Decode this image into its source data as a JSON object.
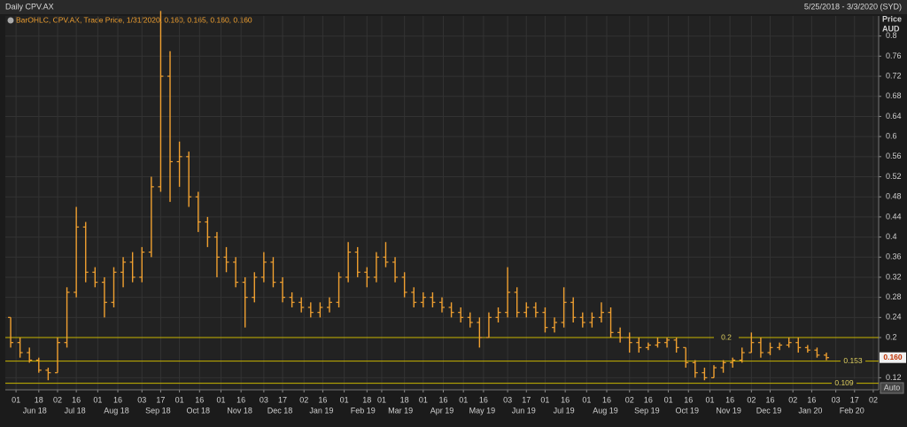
{
  "chart_data": {
    "type": "ohlc",
    "title": "Daily CPV.AX",
    "date_range": "5/25/2018 - 3/3/2020 (SYD)",
    "legend": "BarOHLC, CPV.AX, Trade Price, 1/31/2020, 0.160, 0.165, 0.160, 0.160",
    "y_axis_label": [
      "Price",
      "AUD"
    ],
    "button": "Auto",
    "color": "#f0a030",
    "line_color": "#c8b400",
    "grid": true,
    "xlim": [
      "2018-05-24",
      "2020-03-06"
    ],
    "ylim": [
      0.096,
      0.84
    ],
    "yticks": [
      0.12,
      0.2,
      0.24,
      0.28,
      0.32,
      0.36,
      0.4,
      0.44,
      0.48,
      0.52,
      0.56,
      0.6,
      0.64,
      0.68,
      0.72,
      0.76,
      0.8
    ],
    "hlines": [
      0.2,
      0.153,
      0.109
    ],
    "last_price": {
      "value": 0.16,
      "label": "0.160"
    },
    "xticks": [
      {
        "value": "2018-06-01",
        "label": "01"
      },
      {
        "value": "2018-06-18",
        "label": "18"
      },
      {
        "value": "2018-07-02",
        "label": "02"
      },
      {
        "value": "2018-07-16",
        "label": "16"
      },
      {
        "value": "2018-08-01",
        "label": "01"
      },
      {
        "value": "2018-08-16",
        "label": "16"
      },
      {
        "value": "2018-09-03",
        "label": "03"
      },
      {
        "value": "2018-09-17",
        "label": "17"
      },
      {
        "value": "2018-10-01",
        "label": "01"
      },
      {
        "value": "2018-10-16",
        "label": "16"
      },
      {
        "value": "2018-11-01",
        "label": "01"
      },
      {
        "value": "2018-11-16",
        "label": "16"
      },
      {
        "value": "2018-12-03",
        "label": "03"
      },
      {
        "value": "2018-12-17",
        "label": "17"
      },
      {
        "value": "2019-01-02",
        "label": "02"
      },
      {
        "value": "2019-01-16",
        "label": "16"
      },
      {
        "value": "2019-02-01",
        "label": "01"
      },
      {
        "value": "2019-02-18",
        "label": "18"
      },
      {
        "value": "2019-03-01",
        "label": "01"
      },
      {
        "value": "2019-03-18",
        "label": "18"
      },
      {
        "value": "2019-04-01",
        "label": "01"
      },
      {
        "value": "2019-04-16",
        "label": "16"
      },
      {
        "value": "2019-05-01",
        "label": "01"
      },
      {
        "value": "2019-05-16",
        "label": "16"
      },
      {
        "value": "2019-06-03",
        "label": "03"
      },
      {
        "value": "2019-06-17",
        "label": "17"
      },
      {
        "value": "2019-07-01",
        "label": "01"
      },
      {
        "value": "2019-07-16",
        "label": "16"
      },
      {
        "value": "2019-08-01",
        "label": "01"
      },
      {
        "value": "2019-08-16",
        "label": "16"
      },
      {
        "value": "2019-09-02",
        "label": "02"
      },
      {
        "value": "2019-09-16",
        "label": "16"
      },
      {
        "value": "2019-10-01",
        "label": "01"
      },
      {
        "value": "2019-10-16",
        "label": "16"
      },
      {
        "value": "2019-11-01",
        "label": "01"
      },
      {
        "value": "2019-11-16",
        "label": "16"
      },
      {
        "value": "2019-12-02",
        "label": "02"
      },
      {
        "value": "2019-12-16",
        "label": "16"
      },
      {
        "value": "2020-01-02",
        "label": "02"
      },
      {
        "value": "2020-01-16",
        "label": "16"
      },
      {
        "value": "2020-02-03",
        "label": "03"
      },
      {
        "value": "2020-02-17",
        "label": "17"
      },
      {
        "value": "2020-03-02",
        "label": "02"
      }
    ],
    "month_labels": [
      {
        "value": "2018-06-15",
        "label": "Jun 18"
      },
      {
        "value": "2018-07-15",
        "label": "Jul 18"
      },
      {
        "value": "2018-08-15",
        "label": "Aug 18"
      },
      {
        "value": "2018-09-15",
        "label": "Sep 18"
      },
      {
        "value": "2018-10-15",
        "label": "Oct 18"
      },
      {
        "value": "2018-11-15",
        "label": "Nov 18"
      },
      {
        "value": "2018-12-15",
        "label": "Dec 18"
      },
      {
        "value": "2019-01-15",
        "label": "Jan 19"
      },
      {
        "value": "2019-02-15",
        "label": "Feb 19"
      },
      {
        "value": "2019-03-15",
        "label": "Mar 19"
      },
      {
        "value": "2019-04-15",
        "label": "Apr 19"
      },
      {
        "value": "2019-05-15",
        "label": "May 19"
      },
      {
        "value": "2019-06-15",
        "label": "Jun 19"
      },
      {
        "value": "2019-07-15",
        "label": "Jul 19"
      },
      {
        "value": "2019-08-15",
        "label": "Aug 19"
      },
      {
        "value": "2019-09-15",
        "label": "Sep 19"
      },
      {
        "value": "2019-10-15",
        "label": "Oct 19"
      },
      {
        "value": "2019-11-15",
        "label": "Nov 19"
      },
      {
        "value": "2019-12-15",
        "label": "Dec 19"
      },
      {
        "value": "2020-01-15",
        "label": "Jan 20"
      },
      {
        "value": "2020-02-15",
        "label": "Feb 20"
      }
    ],
    "x": [
      "2018-05-28",
      "2018-06-04",
      "2018-06-11",
      "2018-06-18",
      "2018-06-25",
      "2018-07-02",
      "2018-07-09",
      "2018-07-16",
      "2018-07-23",
      "2018-07-30",
      "2018-08-06",
      "2018-08-13",
      "2018-08-20",
      "2018-08-27",
      "2018-09-03",
      "2018-09-10",
      "2018-09-17",
      "2018-09-24",
      "2018-10-01",
      "2018-10-08",
      "2018-10-15",
      "2018-10-22",
      "2018-10-29",
      "2018-11-05",
      "2018-11-12",
      "2018-11-19",
      "2018-11-26",
      "2018-12-03",
      "2018-12-10",
      "2018-12-17",
      "2018-12-24",
      "2018-12-31",
      "2019-01-07",
      "2019-01-14",
      "2019-01-21",
      "2019-01-28",
      "2019-02-04",
      "2019-02-11",
      "2019-02-18",
      "2019-02-25",
      "2019-03-04",
      "2019-03-11",
      "2019-03-18",
      "2019-03-25",
      "2019-04-01",
      "2019-04-08",
      "2019-04-15",
      "2019-04-22",
      "2019-04-29",
      "2019-05-06",
      "2019-05-13",
      "2019-05-20",
      "2019-05-27",
      "2019-06-03",
      "2019-06-10",
      "2019-06-17",
      "2019-06-24",
      "2019-07-01",
      "2019-07-08",
      "2019-07-15",
      "2019-07-22",
      "2019-07-29",
      "2019-08-05",
      "2019-08-12",
      "2019-08-19",
      "2019-08-26",
      "2019-09-02",
      "2019-09-09",
      "2019-09-16",
      "2019-09-23",
      "2019-09-30",
      "2019-10-07",
      "2019-10-14",
      "2019-10-21",
      "2019-10-28",
      "2019-11-04",
      "2019-11-11",
      "2019-11-18",
      "2019-11-25",
      "2019-12-02",
      "2019-12-09",
      "2019-12-16",
      "2019-12-23",
      "2019-12-30",
      "2020-01-06",
      "2020-01-13",
      "2020-01-20",
      "2020-01-27"
    ],
    "open": [
      0.24,
      0.19,
      0.17,
      0.155,
      0.135,
      0.13,
      0.19,
      0.29,
      0.42,
      0.33,
      0.31,
      0.27,
      0.33,
      0.35,
      0.32,
      0.37,
      0.5,
      0.72,
      0.55,
      0.56,
      0.48,
      0.43,
      0.4,
      0.36,
      0.35,
      0.31,
      0.28,
      0.32,
      0.35,
      0.31,
      0.28,
      0.27,
      0.26,
      0.25,
      0.26,
      0.27,
      0.32,
      0.37,
      0.33,
      0.32,
      0.36,
      0.35,
      0.32,
      0.29,
      0.27,
      0.28,
      0.27,
      0.26,
      0.25,
      0.24,
      0.23,
      0.2,
      0.24,
      0.25,
      0.29,
      0.25,
      0.26,
      0.25,
      0.22,
      0.23,
      0.27,
      0.24,
      0.23,
      0.24,
      0.25,
      0.21,
      0.2,
      0.19,
      0.18,
      0.185,
      0.19,
      0.195,
      0.18,
      0.15,
      0.13,
      0.12,
      0.14,
      0.15,
      0.155,
      0.17,
      0.19,
      0.17,
      0.18,
      0.185,
      0.19,
      0.18,
      0.175,
      0.165
    ],
    "high": [
      0.24,
      0.2,
      0.18,
      0.16,
      0.14,
      0.2,
      0.3,
      0.46,
      0.43,
      0.34,
      0.32,
      0.34,
      0.36,
      0.37,
      0.38,
      0.52,
      0.85,
      0.77,
      0.59,
      0.57,
      0.49,
      0.44,
      0.41,
      0.38,
      0.36,
      0.32,
      0.33,
      0.37,
      0.36,
      0.32,
      0.29,
      0.28,
      0.27,
      0.27,
      0.28,
      0.33,
      0.39,
      0.38,
      0.34,
      0.37,
      0.39,
      0.36,
      0.33,
      0.3,
      0.29,
      0.29,
      0.28,
      0.27,
      0.26,
      0.25,
      0.24,
      0.25,
      0.26,
      0.34,
      0.3,
      0.27,
      0.27,
      0.26,
      0.24,
      0.3,
      0.28,
      0.25,
      0.25,
      0.27,
      0.26,
      0.22,
      0.21,
      0.2,
      0.19,
      0.2,
      0.2,
      0.2,
      0.18,
      0.155,
      0.14,
      0.145,
      0.155,
      0.16,
      0.18,
      0.21,
      0.2,
      0.19,
      0.19,
      0.2,
      0.2,
      0.185,
      0.18,
      0.17
    ],
    "low": [
      0.18,
      0.16,
      0.15,
      0.13,
      0.115,
      0.13,
      0.18,
      0.28,
      0.31,
      0.3,
      0.24,
      0.26,
      0.3,
      0.31,
      0.31,
      0.36,
      0.49,
      0.47,
      0.5,
      0.46,
      0.41,
      0.38,
      0.32,
      0.33,
      0.3,
      0.22,
      0.27,
      0.31,
      0.3,
      0.27,
      0.26,
      0.25,
      0.24,
      0.24,
      0.25,
      0.26,
      0.31,
      0.32,
      0.3,
      0.31,
      0.34,
      0.31,
      0.28,
      0.26,
      0.26,
      0.26,
      0.25,
      0.24,
      0.23,
      0.22,
      0.18,
      0.2,
      0.23,
      0.24,
      0.24,
      0.24,
      0.24,
      0.21,
      0.21,
      0.22,
      0.23,
      0.22,
      0.22,
      0.23,
      0.2,
      0.19,
      0.17,
      0.17,
      0.175,
      0.18,
      0.18,
      0.17,
      0.14,
      0.12,
      0.115,
      0.12,
      0.13,
      0.14,
      0.15,
      0.17,
      0.16,
      0.165,
      0.175,
      0.18,
      0.17,
      0.17,
      0.16,
      0.155
    ],
    "close": [
      0.19,
      0.17,
      0.155,
      0.135,
      0.13,
      0.19,
      0.29,
      0.42,
      0.33,
      0.31,
      0.27,
      0.33,
      0.35,
      0.32,
      0.37,
      0.5,
      0.72,
      0.55,
      0.56,
      0.48,
      0.43,
      0.4,
      0.36,
      0.35,
      0.31,
      0.28,
      0.32,
      0.35,
      0.31,
      0.28,
      0.27,
      0.26,
      0.25,
      0.26,
      0.27,
      0.32,
      0.37,
      0.33,
      0.32,
      0.36,
      0.35,
      0.32,
      0.29,
      0.27,
      0.28,
      0.27,
      0.26,
      0.25,
      0.24,
      0.23,
      0.2,
      0.24,
      0.25,
      0.29,
      0.25,
      0.26,
      0.25,
      0.22,
      0.23,
      0.27,
      0.24,
      0.23,
      0.24,
      0.25,
      0.21,
      0.2,
      0.19,
      0.18,
      0.185,
      0.19,
      0.195,
      0.18,
      0.15,
      0.13,
      0.12,
      0.14,
      0.15,
      0.155,
      0.17,
      0.19,
      0.17,
      0.18,
      0.185,
      0.19,
      0.18,
      0.175,
      0.165,
      0.16
    ]
  }
}
